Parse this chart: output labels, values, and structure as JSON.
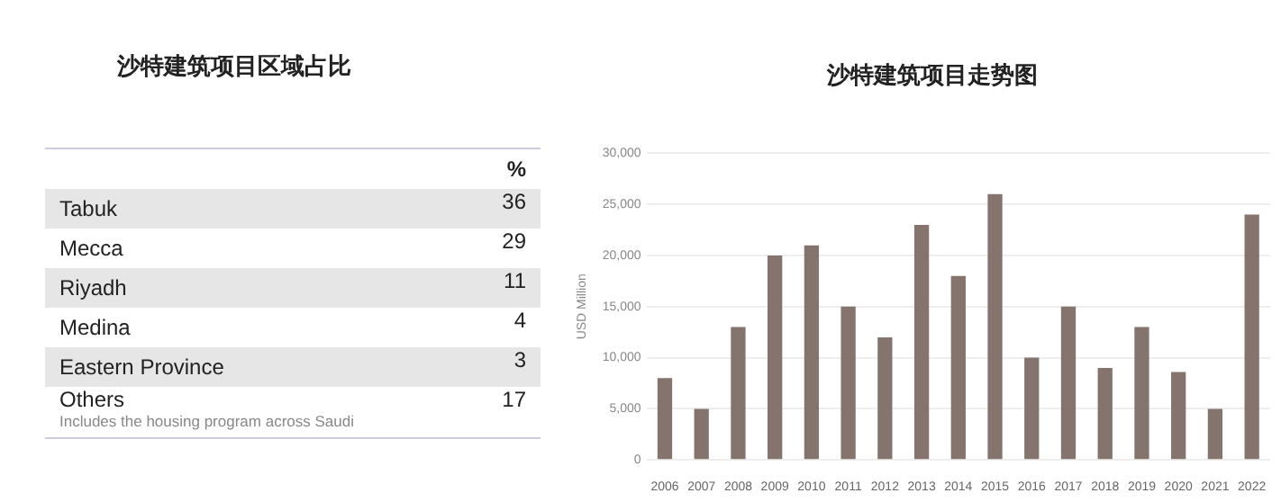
{
  "chart_data": [
    {
      "type": "other",
      "title": "沙特建筑项目区域占比",
      "categories": [
        "Tabuk",
        "Mecca",
        "Riyadh",
        "Medina",
        "Eastern Province",
        "Others"
      ],
      "values": [
        36,
        29,
        11,
        4,
        3,
        17
      ],
      "data_labels": true,
      "annotations": [
        "%",
        "Includes the housing program across Saudi"
      ]
    },
    {
      "type": "bar",
      "title": "沙特建筑项目走势图",
      "ylabel": "USD Million",
      "categories": [
        "2006",
        "2007",
        "2008",
        "2009",
        "2010",
        "2011",
        "2012",
        "2013",
        "2014",
        "2015",
        "2016",
        "2017",
        "2018",
        "2019",
        "2020",
        "2021",
        "2022"
      ],
      "values": [
        8000,
        5000,
        13000,
        20000,
        21000,
        15000,
        12000,
        23000,
        18000,
        26000,
        10000,
        15000,
        9000,
        13000,
        8600,
        5000,
        24000
      ],
      "color": "#85746d",
      "ylim": [
        0,
        30000
      ],
      "yticks": [
        {
          "value": 0,
          "label": "0"
        },
        {
          "value": 5000,
          "label": "5,000"
        },
        {
          "value": 10000,
          "label": "10,000"
        },
        {
          "value": 15000,
          "label": "15,000"
        },
        {
          "value": 20000,
          "label": "20,000"
        },
        {
          "value": 25000,
          "label": "25,000"
        },
        {
          "value": 30000,
          "label": "30,000"
        }
      ],
      "grid": "y",
      "legend": false
    }
  ]
}
